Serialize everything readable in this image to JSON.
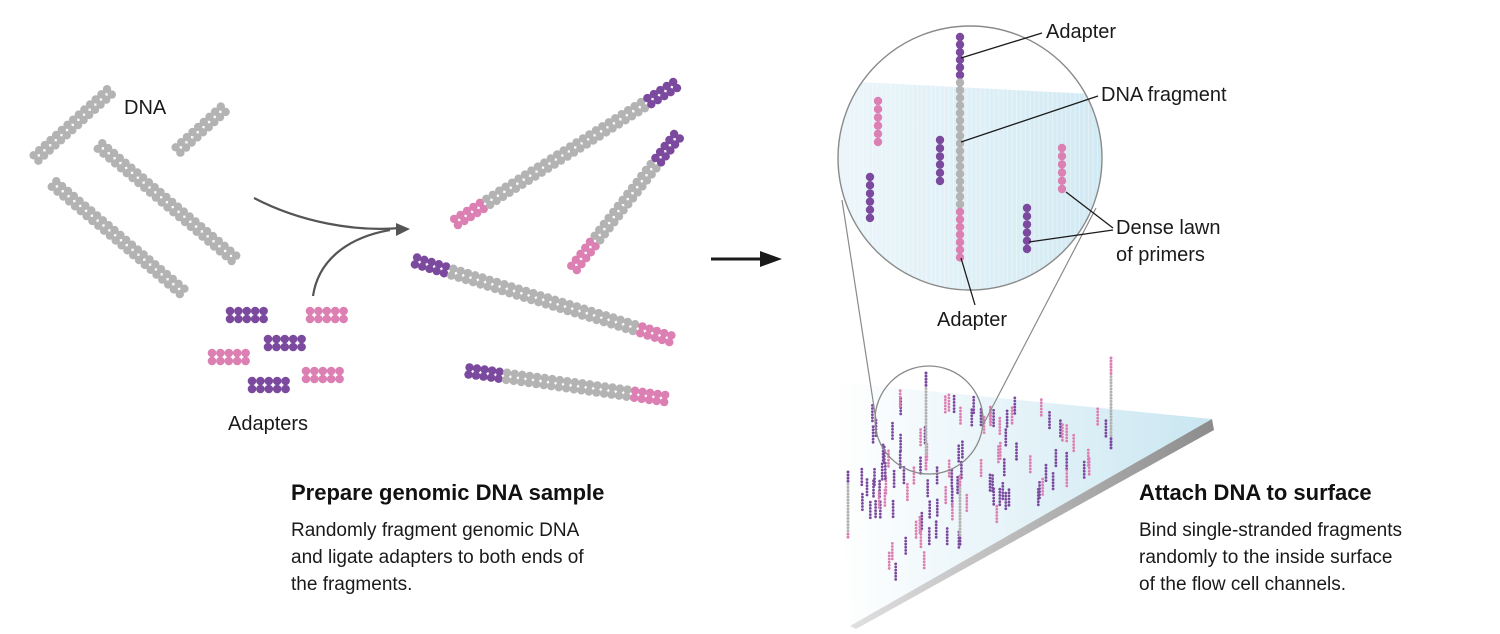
{
  "left": {
    "dna_label": "DNA",
    "adapters_label": "Adapters",
    "heading": "Prepare genomic DNA sample",
    "description_lines": [
      "Randomly fragment genomic DNA",
      "and ligate adapters to both ends of",
      "the fragments."
    ]
  },
  "right": {
    "adapter_top_label": "Adapter",
    "dna_fragment_label": "DNA fragment",
    "primers_label_lines": [
      "Dense lawn",
      "of primers"
    ],
    "adapter_bottom_label": "Adapter",
    "heading": "Attach DNA to surface",
    "description_lines": [
      "Bind single-stranded fragments",
      "randomly to the inside surface",
      "of the flow cell channels."
    ]
  },
  "colors": {
    "dna": "#b3b3b3",
    "adapter_purple": "#7b4a9e",
    "adapter_pink": "#dc7fb2",
    "surface_tint": "#d4ecf4",
    "arrow": "#555555"
  }
}
